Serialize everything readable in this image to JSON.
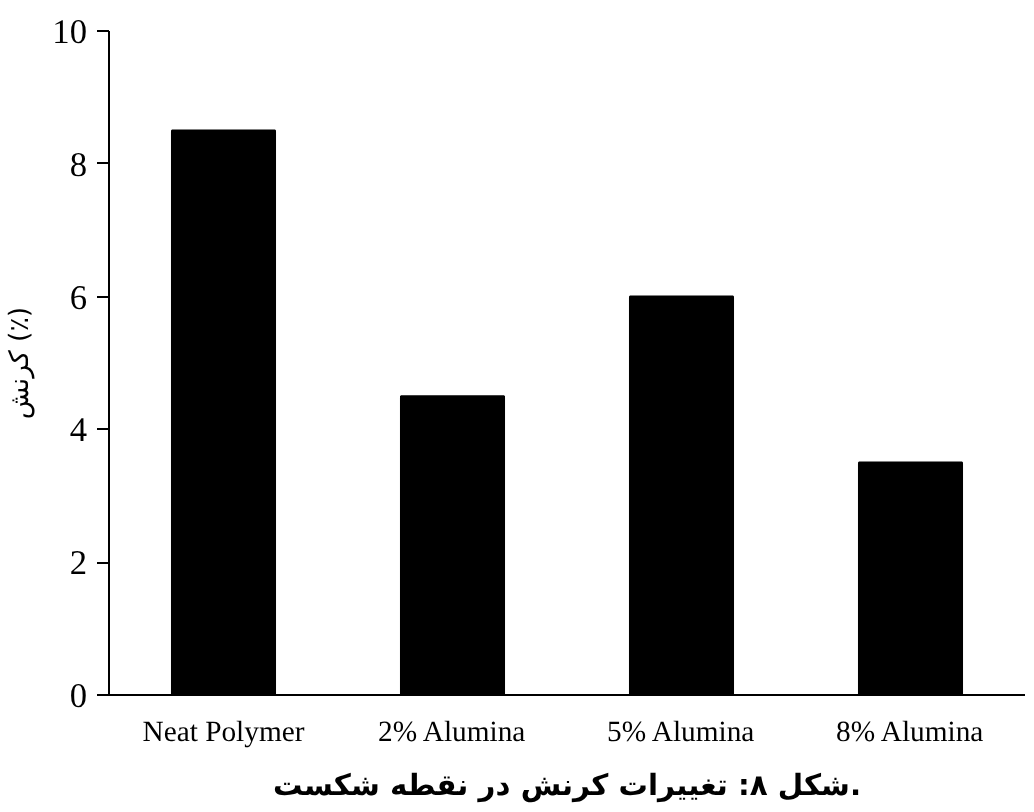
{
  "chart_data": {
    "type": "bar",
    "categories": [
      "Neat Polymer",
      "2% Alumina",
      "5% Alumina",
      "8% Alumina"
    ],
    "values": [
      8.5,
      4.5,
      6,
      3.5
    ],
    "color": "#000000",
    "ylim": [
      0,
      10
    ],
    "yticks": [
      0,
      2,
      4,
      6,
      8,
      10
    ],
    "ylabel": "کرنش (٪)",
    "grid": false,
    "annotations": [
      "شکل ۸: تغییرات کرنش در نقطه شکست."
    ]
  }
}
